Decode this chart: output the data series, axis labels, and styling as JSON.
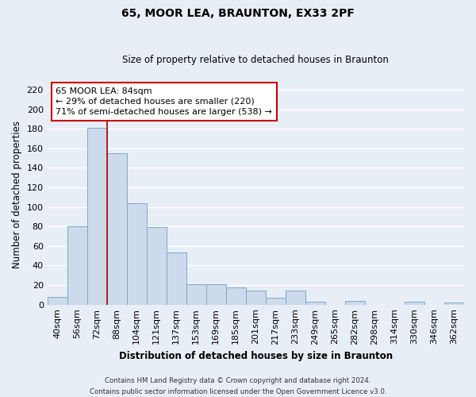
{
  "title": "65, MOOR LEA, BRAUNTON, EX33 2PF",
  "subtitle": "Size of property relative to detached houses in Braunton",
  "xlabel": "Distribution of detached houses by size in Braunton",
  "ylabel": "Number of detached properties",
  "bar_color": "#cddaeb",
  "bar_edge_color": "#7aaac8",
  "categories": [
    "40sqm",
    "56sqm",
    "72sqm",
    "88sqm",
    "104sqm",
    "121sqm",
    "137sqm",
    "153sqm",
    "169sqm",
    "185sqm",
    "201sqm",
    "217sqm",
    "233sqm",
    "249sqm",
    "265sqm",
    "282sqm",
    "298sqm",
    "314sqm",
    "330sqm",
    "346sqm",
    "362sqm"
  ],
  "values": [
    8,
    80,
    181,
    155,
    104,
    79,
    53,
    21,
    21,
    18,
    14,
    7,
    14,
    3,
    0,
    4,
    0,
    0,
    3,
    0,
    2
  ],
  "ylim": [
    0,
    225
  ],
  "yticks": [
    0,
    20,
    40,
    60,
    80,
    100,
    120,
    140,
    160,
    180,
    200,
    220
  ],
  "property_line_color": "#aa0000",
  "annotation_title": "65 MOOR LEA: 84sqm",
  "annotation_line1": "← 29% of detached houses are smaller (220)",
  "annotation_line2": "71% of semi-detached houses are larger (538) →",
  "annotation_box_color": "#ffffff",
  "annotation_box_edge": "#cc0000",
  "footer_line1": "Contains HM Land Registry data © Crown copyright and database right 2024.",
  "footer_line2": "Contains public sector information licensed under the Open Government Licence v3.0.",
  "background_color": "#e8eef5",
  "plot_background": "#e8eef5",
  "grid_color": "#ffffff"
}
